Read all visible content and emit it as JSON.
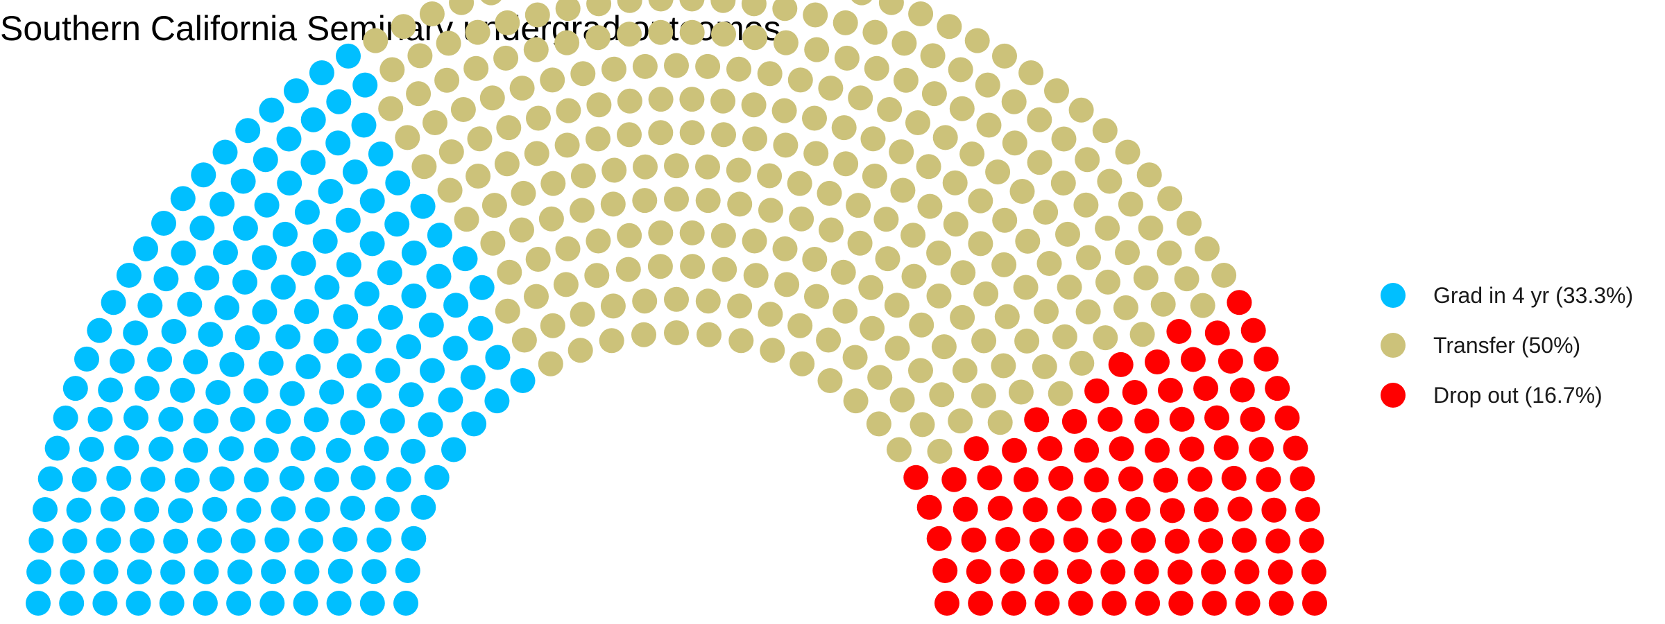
{
  "chart_data": {
    "type": "parliament",
    "title": "Southern California Seminary undergrad outcomes",
    "series": [
      {
        "name": "Grad in 4 yr (33.3%)",
        "value": 33.3,
        "color": "#00BFFF"
      },
      {
        "name": "Transfer (50%)",
        "value": 50,
        "color": "#CCC27A"
      },
      {
        "name": "Drop out (16.7%)",
        "value": 16.7,
        "color": "#FF0000"
      }
    ],
    "grid": false,
    "legend_position": "right"
  }
}
